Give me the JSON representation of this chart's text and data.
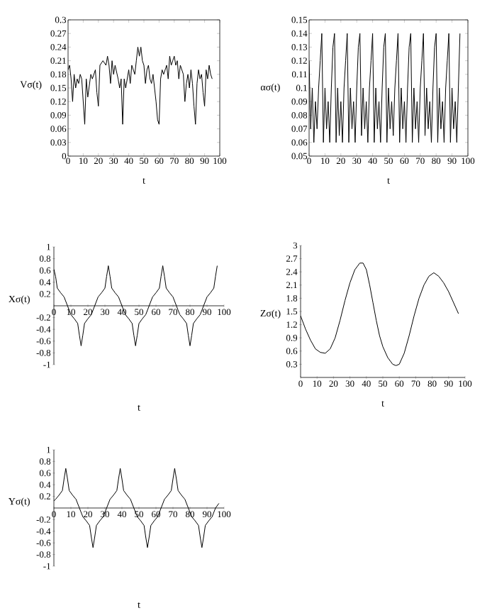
{
  "chart_data": [
    {
      "type": "line",
      "ylabel": "Vσ(t)",
      "xlabel": "t",
      "xlim": [
        0,
        100
      ],
      "ylim": [
        0,
        0.3
      ],
      "xticks": [
        0,
        10,
        20,
        30,
        40,
        50,
        60,
        70,
        80,
        90,
        100
      ],
      "yticks": [
        0,
        0.03,
        0.06,
        0.09,
        0.12,
        0.15,
        0.18,
        0.21,
        0.24,
        0.27,
        0.3
      ],
      "series": [
        {
          "color": "#000000",
          "x": [
            0,
            1,
            2,
            3,
            4,
            5,
            6,
            7,
            8,
            9,
            11,
            12,
            13,
            15,
            16,
            18,
            19,
            20,
            21,
            23,
            25,
            26,
            27,
            28,
            29,
            30,
            31,
            33,
            34,
            35,
            36,
            37,
            38,
            40,
            41,
            42,
            44,
            45,
            46,
            47,
            48,
            49,
            50,
            51,
            52,
            53,
            54,
            55,
            56,
            57,
            58,
            59,
            60,
            61,
            62,
            63,
            65,
            66,
            67,
            68,
            69,
            70,
            71,
            72,
            73,
            74,
            76,
            77,
            78,
            79,
            80,
            81,
            82,
            83,
            84,
            85,
            86,
            87,
            88,
            89,
            90,
            91,
            92,
            93,
            94,
            95
          ],
          "values": [
            0.19,
            0.2,
            0.17,
            0.12,
            0.18,
            0.15,
            0.17,
            0.16,
            0.18,
            0.17,
            0.07,
            0.17,
            0.13,
            0.18,
            0.17,
            0.19,
            0.14,
            0.11,
            0.2,
            0.21,
            0.2,
            0.22,
            0.2,
            0.16,
            0.21,
            0.18,
            0.2,
            0.17,
            0.15,
            0.17,
            0.07,
            0.17,
            0.15,
            0.19,
            0.16,
            0.2,
            0.18,
            0.21,
            0.24,
            0.22,
            0.24,
            0.21,
            0.2,
            0.16,
            0.19,
            0.2,
            0.17,
            0.16,
            0.18,
            0.15,
            0.12,
            0.08,
            0.07,
            0.17,
            0.19,
            0.18,
            0.2,
            0.17,
            0.22,
            0.2,
            0.21,
            0.22,
            0.2,
            0.21,
            0.17,
            0.2,
            0.18,
            0.12,
            0.16,
            0.18,
            0.15,
            0.19,
            0.16,
            0.11,
            0.07,
            0.16,
            0.19,
            0.17,
            0.18,
            0.14,
            0.11,
            0.19,
            0.17,
            0.2,
            0.18,
            0.17
          ]
        }
      ]
    },
    {
      "type": "line",
      "ylabel": "ασ(t)",
      "xlabel": "t",
      "xlim": [
        0,
        100
      ],
      "ylim": [
        0.05,
        0.15
      ],
      "xticks": [
        0,
        10,
        20,
        30,
        40,
        50,
        60,
        70,
        80,
        90,
        100
      ],
      "yticks": [
        0.05,
        0.06,
        0.07,
        0.08,
        0.09,
        0.1,
        0.11,
        0.12,
        0.13,
        0.14,
        0.15
      ],
      "series": [
        {
          "color": "#000000",
          "x": [
            0,
            1,
            2,
            3,
            4,
            5,
            6,
            7,
            8,
            9,
            10,
            11,
            12,
            13,
            14,
            15,
            16,
            17,
            18,
            19,
            20,
            21,
            22,
            23,
            24,
            25,
            26,
            27,
            28,
            29,
            30,
            31,
            32,
            33,
            34,
            35,
            36,
            37,
            38,
            39,
            40,
            41,
            42,
            43,
            44,
            45,
            46,
            47,
            48,
            49,
            50,
            51,
            52,
            53,
            54,
            55,
            56,
            57,
            58,
            59,
            60,
            61,
            62,
            63,
            64,
            65,
            66,
            67,
            68,
            69,
            70,
            71,
            72,
            73,
            74,
            75,
            76,
            77,
            78,
            79,
            80,
            81,
            82,
            83,
            84,
            85,
            86,
            87,
            88,
            89,
            90,
            91,
            92,
            93,
            94,
            95
          ],
          "values": [
            0.12,
            0.07,
            0.1,
            0.06,
            0.09,
            0.07,
            0.1,
            0.12,
            0.14,
            0.06,
            0.1,
            0.07,
            0.09,
            0.06,
            0.1,
            0.13,
            0.14,
            0.06,
            0.1,
            0.065,
            0.09,
            0.06,
            0.1,
            0.12,
            0.14,
            0.06,
            0.1,
            0.07,
            0.09,
            0.06,
            0.1,
            0.13,
            0.14,
            0.065,
            0.1,
            0.07,
            0.09,
            0.06,
            0.1,
            0.12,
            0.14,
            0.06,
            0.1,
            0.07,
            0.09,
            0.06,
            0.1,
            0.13,
            0.14,
            0.06,
            0.1,
            0.07,
            0.09,
            0.065,
            0.1,
            0.12,
            0.14,
            0.06,
            0.1,
            0.07,
            0.09,
            0.06,
            0.1,
            0.13,
            0.14,
            0.06,
            0.1,
            0.07,
            0.09,
            0.06,
            0.1,
            0.12,
            0.14,
            0.065,
            0.1,
            0.07,
            0.09,
            0.06,
            0.1,
            0.13,
            0.14,
            0.06,
            0.1,
            0.07,
            0.09,
            0.06,
            0.1,
            0.12,
            0.14,
            0.06,
            0.1,
            0.07,
            0.09,
            0.06,
            0.1,
            0.14
          ]
        }
      ]
    },
    {
      "type": "line",
      "ylabel": "Xσ(t)",
      "xlabel": "t",
      "xlim": [
        0,
        100
      ],
      "ylim": [
        -1,
        1
      ],
      "xticks": [
        0,
        10,
        20,
        30,
        40,
        50,
        60,
        70,
        80,
        90,
        100
      ],
      "yticks": [
        -1,
        -0.8,
        -0.6,
        -0.4,
        -0.2,
        0.2,
        0.4,
        0.6,
        0.8,
        1
      ],
      "series": [
        {
          "color": "#000000",
          "x": [
            0,
            1,
            2,
            4,
            6,
            8,
            10,
            12,
            14,
            15,
            16,
            17,
            18,
            20,
            22,
            24,
            26,
            28,
            30,
            31,
            32,
            33,
            34,
            36,
            38,
            40,
            42,
            44,
            46,
            47,
            48,
            49,
            50,
            52,
            54,
            56,
            58,
            60,
            62,
            63,
            64,
            65,
            66,
            68,
            70,
            72,
            74,
            76,
            78,
            79,
            80,
            81,
            82,
            84,
            86,
            88,
            90,
            92,
            94,
            95,
            96
          ],
          "values": [
            0.62,
            0.5,
            0.3,
            0.22,
            0.15,
            0,
            -0.15,
            -0.22,
            -0.3,
            -0.5,
            -0.68,
            -0.5,
            -0.3,
            -0.22,
            -0.15,
            0,
            0.15,
            0.22,
            0.3,
            0.5,
            0.68,
            0.5,
            0.3,
            0.22,
            0.15,
            0,
            -0.15,
            -0.22,
            -0.3,
            -0.5,
            -0.68,
            -0.5,
            -0.3,
            -0.22,
            -0.15,
            0,
            0.15,
            0.22,
            0.3,
            0.5,
            0.68,
            0.5,
            0.3,
            0.22,
            0.15,
            0,
            -0.15,
            -0.22,
            -0.3,
            -0.5,
            -0.68,
            -0.5,
            -0.3,
            -0.22,
            -0.15,
            0,
            0.15,
            0.22,
            0.3,
            0.5,
            0.68
          ]
        }
      ]
    },
    {
      "type": "line",
      "ylabel": "Zσ(t)",
      "xlabel": "t",
      "xlim": [
        0,
        100
      ],
      "ylim": [
        0,
        3
      ],
      "xticks": [
        0,
        10,
        20,
        30,
        40,
        50,
        60,
        70,
        80,
        90,
        100
      ],
      "yticks": [
        0.3,
        0.6,
        0.9,
        1.2,
        1.5,
        1.8,
        2.1,
        2.4,
        2.7,
        3
      ],
      "series": [
        {
          "color": "#000000",
          "x": [
            0,
            3,
            6,
            9,
            12,
            15,
            18,
            21,
            24,
            27,
            30,
            33,
            36,
            38,
            40,
            42,
            44,
            46,
            48,
            50,
            53,
            56,
            58,
            60,
            63,
            66,
            69,
            72,
            75,
            78,
            81,
            84,
            87,
            90,
            93,
            96
          ],
          "values": [
            1.4,
            1.1,
            0.85,
            0.65,
            0.57,
            0.55,
            0.65,
            0.9,
            1.3,
            1.75,
            2.15,
            2.45,
            2.6,
            2.6,
            2.45,
            2.1,
            1.7,
            1.3,
            0.95,
            0.7,
            0.45,
            0.3,
            0.27,
            0.3,
            0.55,
            0.95,
            1.4,
            1.8,
            2.1,
            2.3,
            2.38,
            2.3,
            2.15,
            1.95,
            1.7,
            1.45
          ]
        }
      ]
    },
    {
      "type": "line",
      "ylabel": "Yσ(t)",
      "xlabel": "t",
      "xlim": [
        0,
        100
      ],
      "ylim": [
        -1,
        1
      ],
      "xticks": [
        0,
        10,
        20,
        30,
        40,
        50,
        60,
        70,
        80,
        90,
        100
      ],
      "yticks": [
        -1,
        -0.8,
        -0.6,
        -0.4,
        -0.2,
        0.2,
        0.4,
        0.6,
        0.8,
        1
      ],
      "series": [
        {
          "color": "#000000",
          "x": [
            0,
            1,
            3,
            5,
            6,
            7,
            8,
            9,
            11,
            13,
            15,
            17,
            19,
            21,
            22,
            23,
            24,
            25,
            27,
            29,
            31,
            33,
            35,
            37,
            38,
            39,
            40,
            41,
            43,
            45,
            47,
            49,
            51,
            53,
            54,
            55,
            56,
            57,
            59,
            61,
            63,
            65,
            67,
            69,
            70,
            71,
            72,
            73,
            75,
            77,
            79,
            81,
            83,
            85,
            86,
            87,
            88,
            89,
            91,
            93,
            95,
            97
          ],
          "values": [
            0.12,
            0.15,
            0.22,
            0.3,
            0.5,
            0.68,
            0.5,
            0.3,
            0.22,
            0.15,
            0,
            -0.15,
            -0.22,
            -0.3,
            -0.5,
            -0.68,
            -0.5,
            -0.3,
            -0.22,
            -0.15,
            0,
            0.15,
            0.22,
            0.3,
            0.5,
            0.68,
            0.5,
            0.3,
            0.22,
            0.15,
            0,
            -0.15,
            -0.22,
            -0.3,
            -0.5,
            -0.68,
            -0.5,
            -0.3,
            -0.22,
            -0.15,
            0,
            0.15,
            0.22,
            0.3,
            0.5,
            0.68,
            0.5,
            0.3,
            0.22,
            0.15,
            0,
            -0.15,
            -0.22,
            -0.3,
            -0.5,
            -0.68,
            -0.5,
            -0.3,
            -0.22,
            -0.15,
            0,
            0.08
          ]
        }
      ]
    }
  ]
}
